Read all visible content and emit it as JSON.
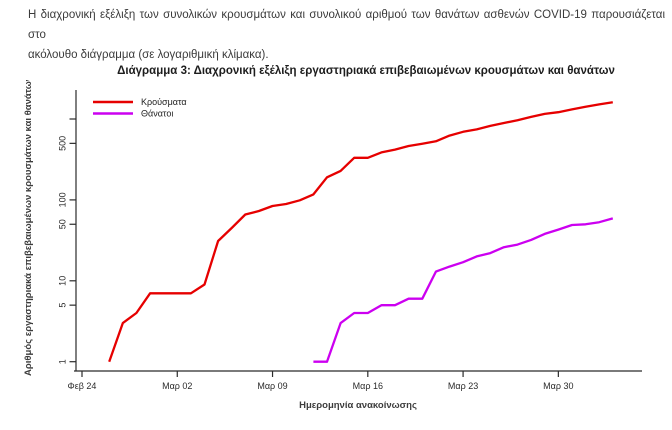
{
  "page": {
    "intro_line1": "Η διαχρονική εξέλιξη των συνολικών κρουσμάτων και συνολικού αριθμού των θανάτων ασθενών COVID-19 παρουσιάζεται στο",
    "intro_line2": "ακόλουθο διάγραμμα (σε λογαριθμική κλίμακα).",
    "chart_caption": "Διάγραμμα 3: Διαχρονική εξέλιξη εργαστηριακά επιβεβαιωμένων κρουσμάτων και θανάτων"
  },
  "colors": {
    "cases_line": "#e60000",
    "deaths_line": "#cc00f0",
    "axis": "#2b2b2b",
    "tick_text": "#2b2b2b",
    "label_text": "#3d3d3d",
    "legend_text": "#222222"
  },
  "chart_data": {
    "type": "line",
    "title": "Διάγραμμα 3: Διαχρονική εξέλιξη εργαστηριακά επιβεβαιωμένων κρουσμάτων και θανάτων",
    "xlabel": "Ημερομηνία ανακοίνωσης",
    "ylabel": "Αριθμός εργαστηριακά επιβεβαιωμένων κρουσμάτων και θανάτων",
    "y_scale": "log10",
    "ylim": [
      1,
      1000
    ],
    "grid": false,
    "legend_position": "top-left",
    "y_ticks": [
      {
        "value": 1,
        "label": "1"
      },
      {
        "value": 5,
        "label": "5"
      },
      {
        "value": 10,
        "label": "10"
      },
      {
        "value": 50,
        "label": "50"
      },
      {
        "value": 100,
        "label": "100"
      },
      {
        "value": 500,
        "label": "500"
      },
      {
        "value": 1000,
        "label": ""
      }
    ],
    "x_ticks": [
      {
        "day": 0,
        "label": "Φεβ 24"
      },
      {
        "day": 7,
        "label": "Μαρ 02"
      },
      {
        "day": 14,
        "label": "Μαρ 09"
      },
      {
        "day": 21,
        "label": "Μαρ 16"
      },
      {
        "day": 28,
        "label": "Μαρ 23"
      },
      {
        "day": 35,
        "label": "Μαρ 30"
      }
    ],
    "x_day0_label": "Φεβ 24",
    "series": [
      {
        "name": "Κρούσματα",
        "color": "#e60000",
        "start_date_label": "Φεβ 26",
        "start_day_index": 2,
        "values": [
          1,
          3,
          4,
          7,
          7,
          7,
          7,
          9,
          31,
          45,
          66,
          73,
          84,
          89,
          99,
          117,
          190,
          228,
          331,
          331,
          387,
          418,
          464,
          495,
          530,
          624,
          695,
          743,
          821,
          892,
          966,
          1061,
          1156,
          1212,
          1314,
          1415,
          1514,
          1613
        ]
      },
      {
        "name": "Θάνατοι",
        "color": "#cc00f0",
        "start_date_label": "Μαρ 12",
        "start_day_index": 17,
        "values": [
          1,
          1,
          3,
          4,
          4,
          5,
          5,
          6,
          6,
          13,
          15,
          17,
          20,
          22,
          26,
          28,
          32,
          38,
          43,
          49,
          50,
          53,
          59
        ]
      }
    ]
  }
}
